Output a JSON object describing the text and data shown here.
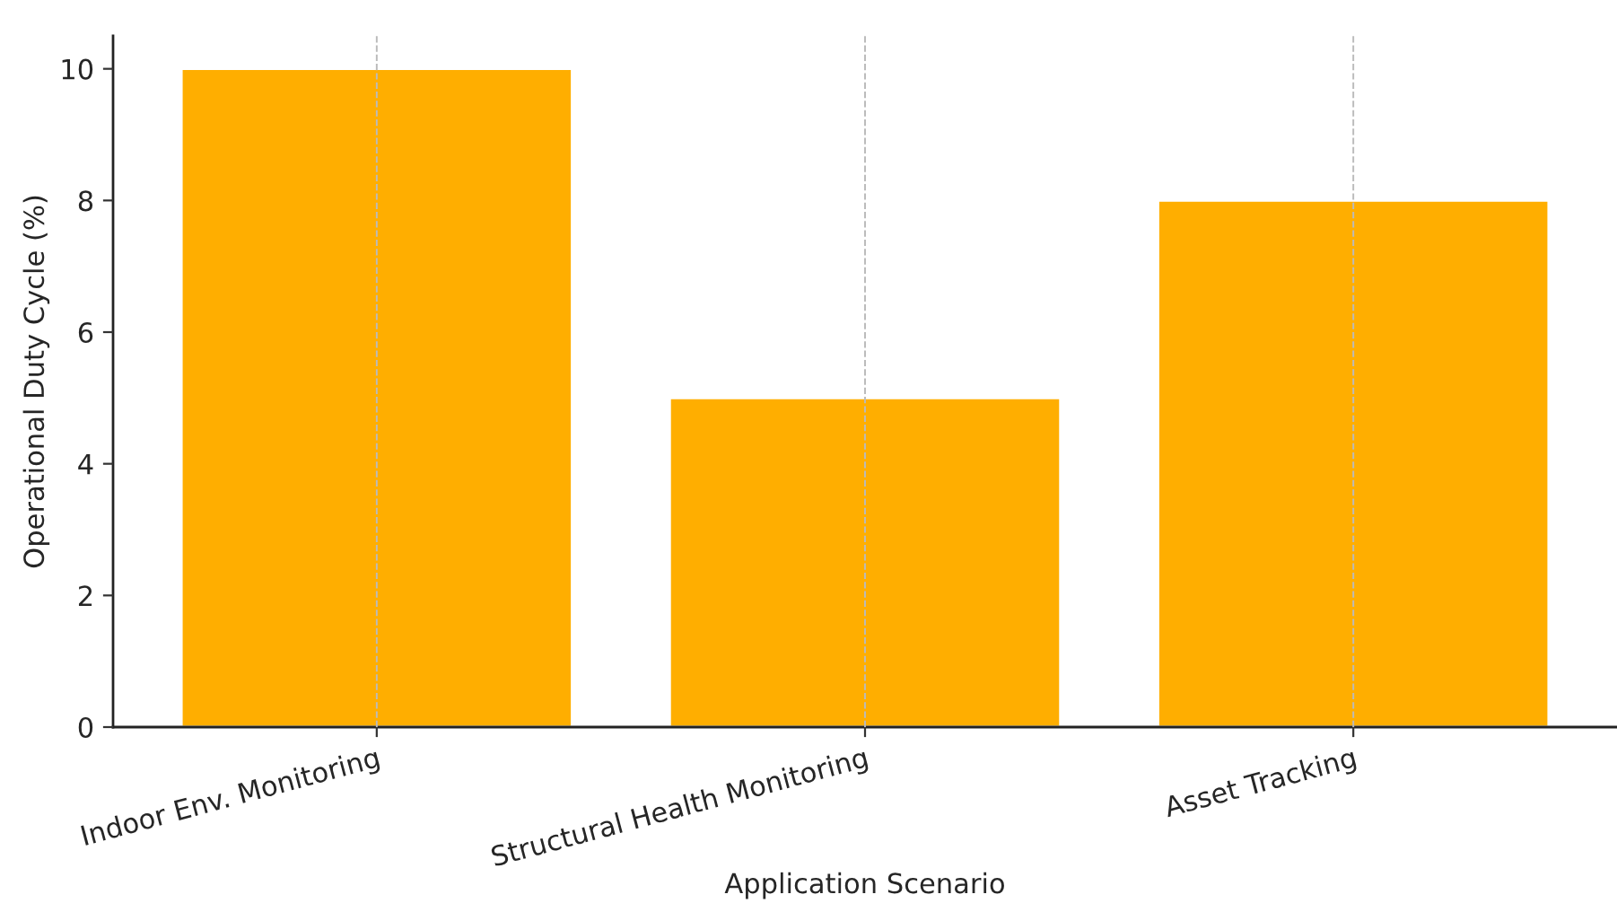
{
  "chart_data": {
    "type": "bar",
    "xlabel": "Application Scenario",
    "ylabel": "Operational Duty Cycle (%)",
    "categories": [
      "Indoor Env. Monitoring",
      "Structural Health Monitoring",
      "Asset Tracking"
    ],
    "values": [
      10,
      5,
      8
    ],
    "color": "#ffae00",
    "ylim": [
      0,
      10.5
    ],
    "yticks": [
      0,
      2,
      4,
      6,
      8,
      10
    ],
    "grid": "x"
  }
}
